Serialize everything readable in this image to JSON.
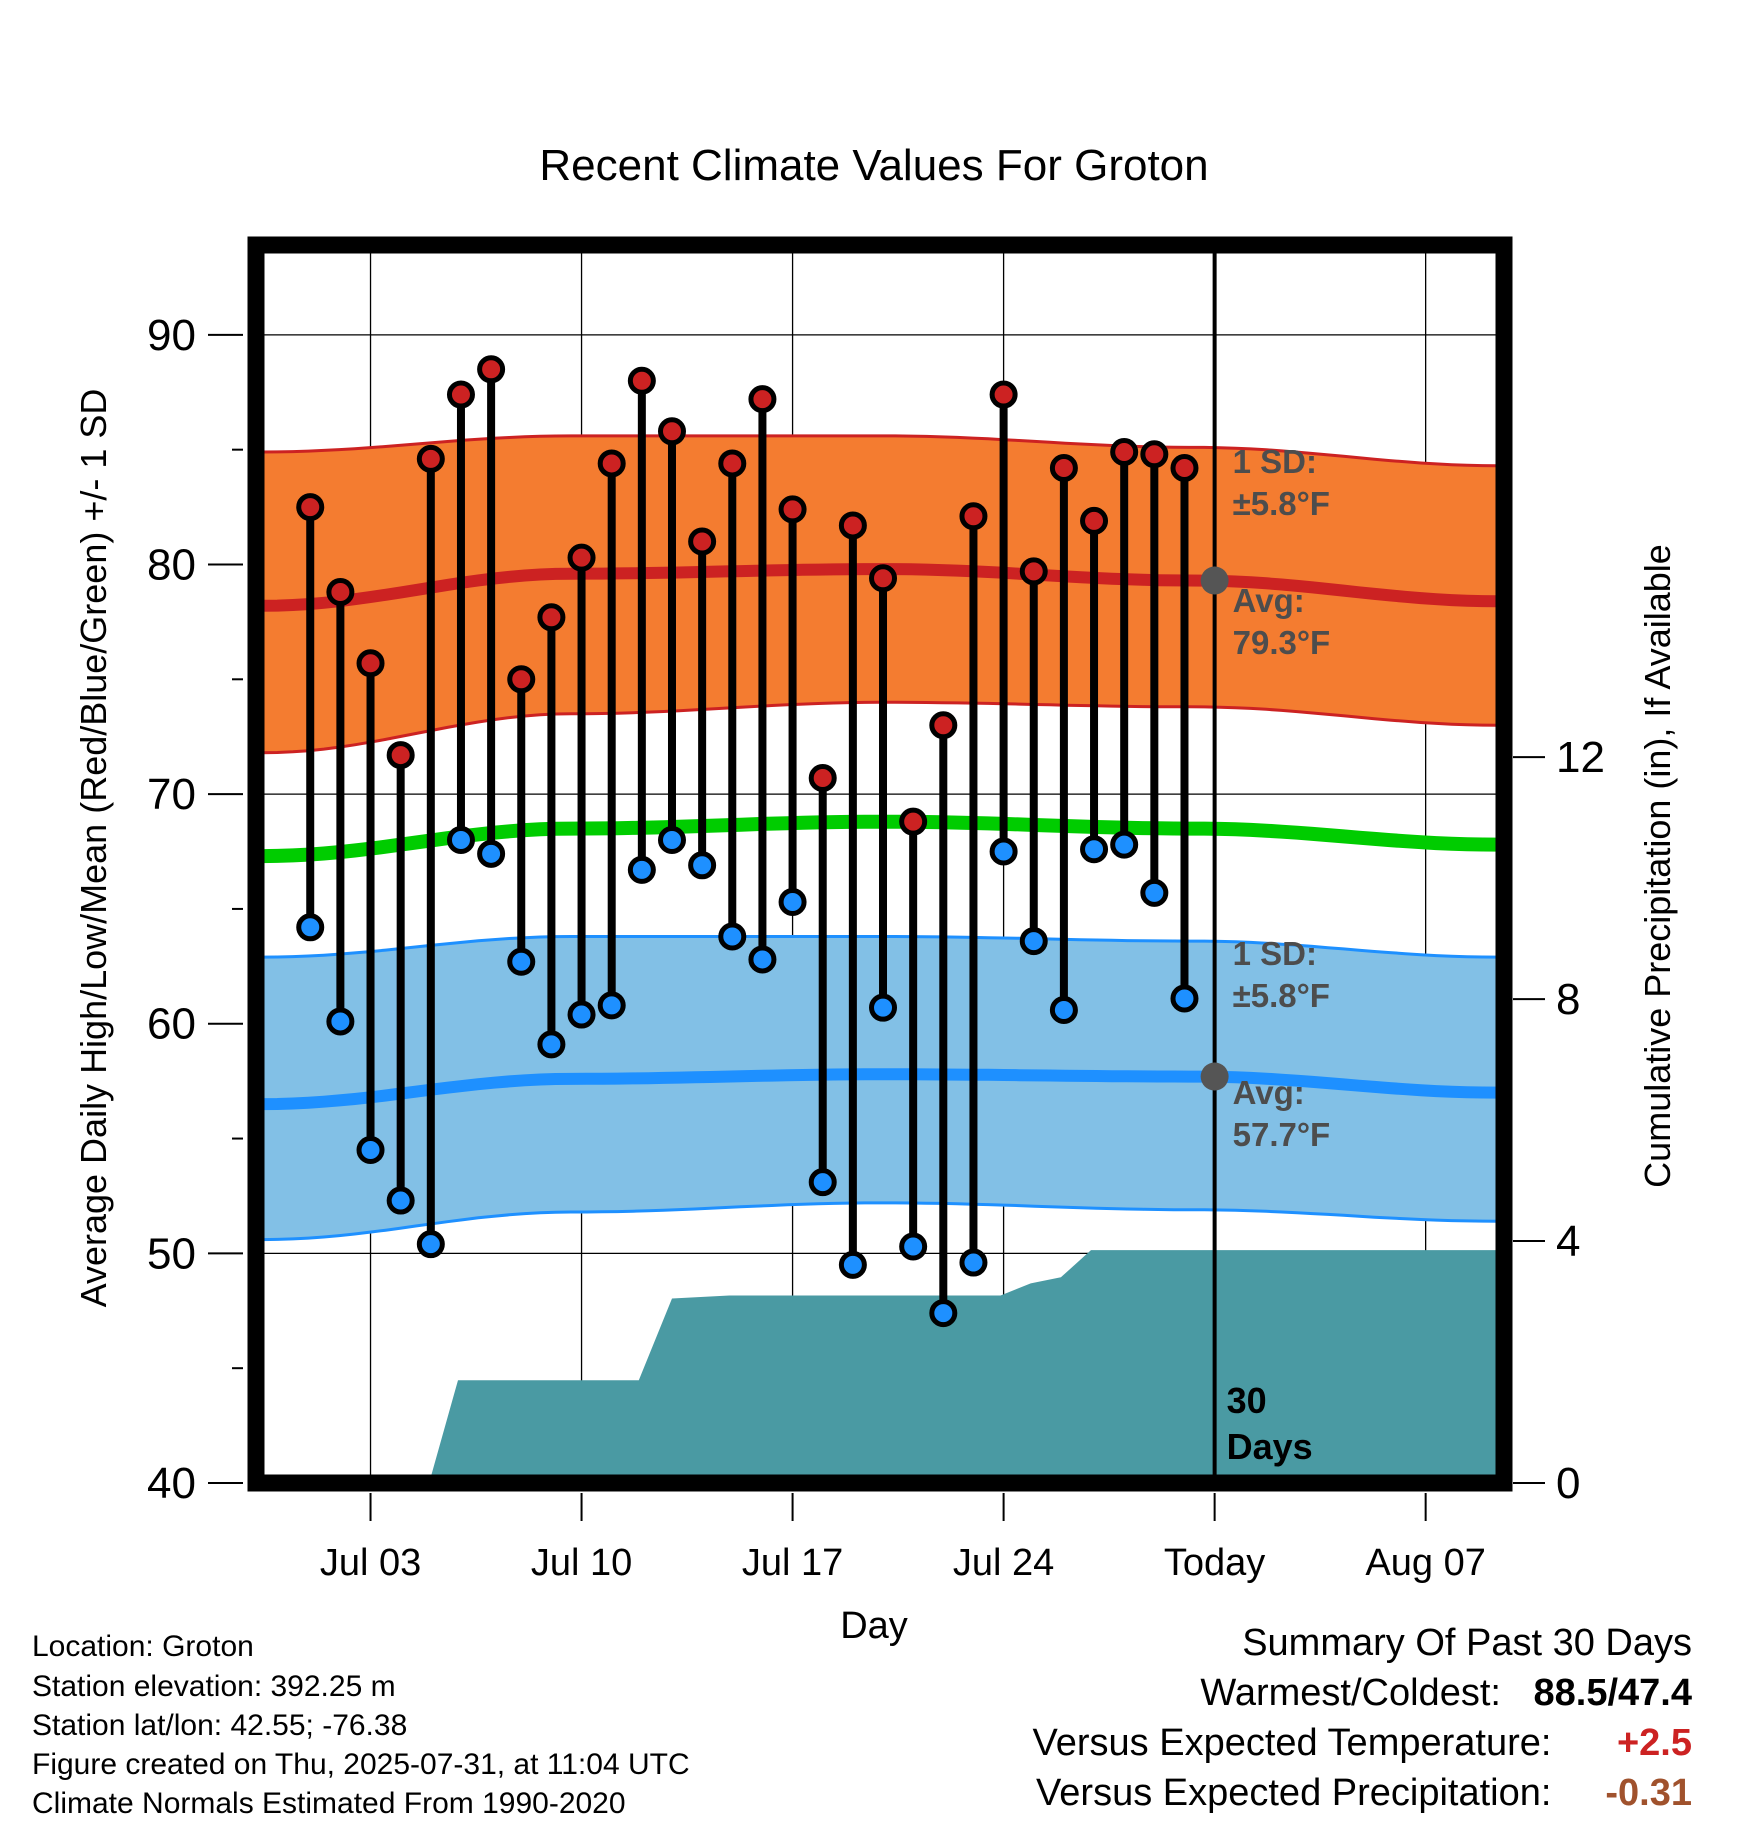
{
  "chart_data": {
    "type": "line",
    "title": "Recent Climate Values For Groton",
    "xlabel": "Day",
    "ylabel": "Average Daily High/Low/Mean (Red/Blue/Green) +/- 1 SD",
    "y2label": "Cumulative Precipitation (in), If Available",
    "ylim": [
      40,
      94
    ],
    "y2lim": [
      0,
      20.5
    ],
    "yticks": [
      40,
      50,
      60,
      70,
      80,
      90
    ],
    "y2ticks": [
      0,
      4,
      8,
      12
    ],
    "xticks": [
      {
        "day": 3,
        "label": "Jul 03"
      },
      {
        "day": 10,
        "label": "Jul 10"
      },
      {
        "day": 17,
        "label": "Jul 17"
      },
      {
        "day": 24,
        "label": "Jul 24"
      },
      {
        "day": 31,
        "label": "Today"
      },
      {
        "day": 38,
        "label": "Aug 07"
      }
    ],
    "xlim": [
      -0.6,
      40.4
    ],
    "today_day": 31,
    "today_label": "30 Days",
    "grid": true,
    "colors": {
      "high": "#cc2222",
      "high_band": "#f47c30",
      "low": "#1e90ff",
      "low_band": "#82c0e6",
      "mean": "#00cc00",
      "precip": "#4a9aa3"
    },
    "normals": {
      "x": [
        -0.6,
        9.7,
        20,
        30.3,
        40.4
      ],
      "high_avg": [
        78.2,
        79.6,
        79.8,
        79.3,
        78.4
      ],
      "high_upper": [
        84.9,
        85.6,
        85.6,
        85.1,
        84.3
      ],
      "high_lower": [
        71.8,
        73.5,
        74.0,
        73.8,
        73.0
      ],
      "low_avg": [
        56.5,
        57.6,
        57.8,
        57.7,
        57.0
      ],
      "low_upper": [
        62.9,
        63.8,
        63.8,
        63.6,
        62.9
      ],
      "low_lower": [
        50.6,
        51.8,
        52.2,
        51.9,
        51.4
      ],
      "mean": [
        67.3,
        68.5,
        68.8,
        68.5,
        67.8
      ]
    },
    "today_markers": {
      "high_avg": 79.3,
      "low_avg": 57.7
    },
    "band_labels": {
      "high_sd": [
        "1 SD:",
        "±5.8°F"
      ],
      "high_avg": [
        "Avg:",
        "79.3°F"
      ],
      "low_sd": [
        "1 SD:",
        "±5.8°F"
      ],
      "low_avg": [
        "Avg:",
        "57.7°F"
      ]
    },
    "daily": {
      "day": [
        1,
        2,
        3,
        4,
        5,
        6,
        7,
        8,
        9,
        10,
        11,
        12,
        13,
        14,
        15,
        16,
        17,
        18,
        19,
        20,
        21,
        22,
        23,
        24,
        25,
        26,
        27,
        28,
        29,
        30
      ],
      "high": [
        82.5,
        78.8,
        75.7,
        71.7,
        84.6,
        87.4,
        88.5,
        75.0,
        77.7,
        80.3,
        84.4,
        88.0,
        85.8,
        81.0,
        84.4,
        87.2,
        82.4,
        70.7,
        81.7,
        79.4,
        68.8,
        73.0,
        82.1,
        87.4,
        79.7,
        84.2,
        81.9,
        84.9,
        84.8,
        84.2
      ],
      "low": [
        64.2,
        60.1,
        54.5,
        52.3,
        50.4,
        68.0,
        67.4,
        62.7,
        59.1,
        60.4,
        60.8,
        66.7,
        68.0,
        66.9,
        63.8,
        62.8,
        65.3,
        53.1,
        49.5,
        60.7,
        50.3,
        47.4,
        49.6,
        67.5,
        63.6,
        60.6,
        67.6,
        67.8,
        65.7,
        61.1
      ]
    },
    "precip": {
      "x": [
        -0.6,
        5.0,
        5.9,
        10.9,
        11.9,
        13.0,
        14.9,
        23.9,
        24.9,
        25.9,
        26.9,
        40.4
      ],
      "y": [
        0.1,
        0.1,
        1.7,
        1.7,
        1.7,
        3.05,
        3.1,
        3.1,
        3.3,
        3.4,
        3.85,
        3.85
      ]
    }
  },
  "footer": {
    "location": "Location: Groton",
    "elevation": "Station elevation: 392.25 m",
    "latlon": "Station lat/lon: 42.55; -76.38",
    "created": "Figure created on Thu, 2025-07-31, at 11:04 UTC",
    "normals": "Climate Normals Estimated From 1990-2020"
  },
  "summary": {
    "title": "Summary Of Past 30 Days",
    "warmest_coldest_label": "Warmest/Coldest:",
    "warmest_coldest_value": "88.5/47.4",
    "temp_label": "Versus Expected Temperature:",
    "temp_value": "+2.5",
    "temp_color": "#cc2222",
    "precip_label": "Versus Expected Precipitation:",
    "precip_value": "-0.31",
    "precip_color": "#a0522d"
  }
}
